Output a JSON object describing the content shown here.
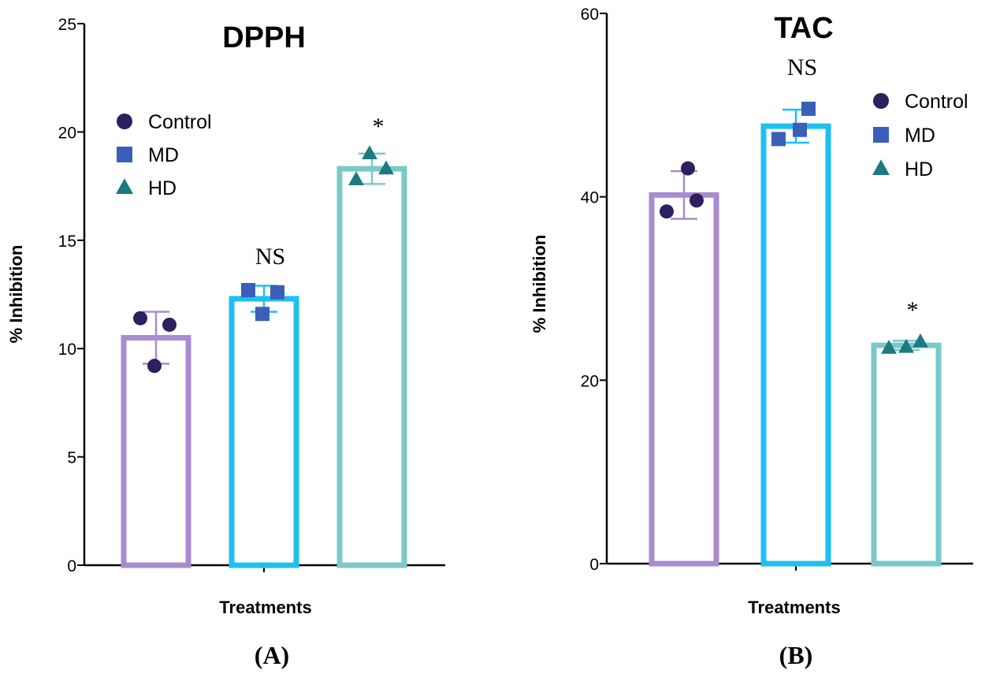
{
  "chart_data": [
    {
      "type": "bar",
      "panel_label": "(A)",
      "title": "DPPH",
      "xlabel": "Treatments",
      "ylabel": "% Inhibition",
      "ylim": [
        0,
        25
      ],
      "yticks": [
        0,
        5,
        10,
        15,
        20,
        25
      ],
      "legend": [
        "Control",
        "MD",
        "HD"
      ],
      "legend_position": "top-left",
      "series": [
        {
          "name": "Control",
          "value": 10.5,
          "error": 1.2,
          "points": [
            11.4,
            11.1,
            9.2
          ],
          "color": "#a98ccf",
          "marker_color": "#2e1f5e",
          "marker": "circle",
          "annotation": ""
        },
        {
          "name": "MD",
          "value": 12.3,
          "error": 0.6,
          "points": [
            12.7,
            12.6,
            11.6
          ],
          "color": "#1ec0f0",
          "marker_color": "#3a5fb8",
          "marker": "square",
          "annotation": "NS"
        },
        {
          "name": "HD",
          "value": 18.3,
          "error": 0.7,
          "points": [
            17.8,
            18.3,
            19.0
          ],
          "color": "#79c9c9",
          "marker_color": "#1c7a80",
          "marker": "triangle",
          "annotation": "*"
        }
      ]
    },
    {
      "type": "bar",
      "panel_label": "(B)",
      "title": "TAC",
      "xlabel": "Treatments",
      "ylabel": "% Inhibition",
      "ylim": [
        0,
        60
      ],
      "yticks": [
        0,
        20,
        40,
        60
      ],
      "legend": [
        "Control",
        "MD",
        "HD"
      ],
      "legend_position": "top-right",
      "series": [
        {
          "name": "Control",
          "value": 40.2,
          "error": 2.6,
          "points": [
            38.4,
            39.6,
            43.1
          ],
          "color": "#a98ccf",
          "marker_color": "#2e1f5e",
          "marker": "circle",
          "annotation": ""
        },
        {
          "name": "MD",
          "value": 47.7,
          "error": 1.8,
          "points": [
            46.3,
            49.6,
            47.3
          ],
          "color": "#1ec0f0",
          "marker_color": "#3a5fb8",
          "marker": "square",
          "annotation": "NS"
        },
        {
          "name": "HD",
          "value": 23.8,
          "error": 0.5,
          "points": [
            23.5,
            24.2,
            23.6
          ],
          "color": "#79c9c9",
          "marker_color": "#1c7a80",
          "marker": "triangle",
          "annotation": "*"
        }
      ]
    }
  ]
}
